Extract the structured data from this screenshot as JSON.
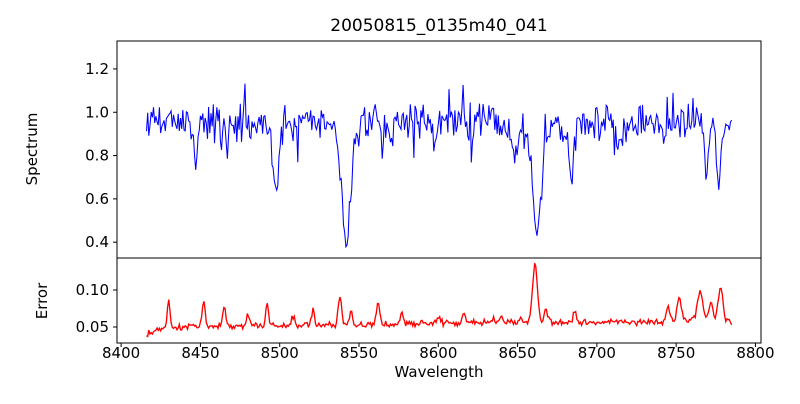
{
  "chart_data": {
    "type": "line",
    "title": "20050815_0135m40_041",
    "xlabel": "Wavelength",
    "background_color": "#ffffff",
    "spine_color": "#000000",
    "xlim": [
      8397.4,
      8803.5
    ],
    "x_data_range": [
      8416,
      8785
    ],
    "n_points": 500,
    "x_ticks": {
      "values": [
        8400,
        8450,
        8500,
        8550,
        8600,
        8650,
        8700,
        8750,
        8800
      ],
      "labels": [
        "8400",
        "8450",
        "8500",
        "8550",
        "8600",
        "8650",
        "8700",
        "8750",
        "8800"
      ]
    },
    "panels": [
      {
        "name": "spectrum",
        "ylabel": "Spectrum",
        "line_color": "#0000ff",
        "ylim": [
          0.327,
          1.329
        ],
        "y_ticks": {
          "values": [
            0.4,
            0.6,
            0.8,
            1.0,
            1.2
          ],
          "labels": [
            "0.4",
            "0.6",
            "0.8",
            "1.0",
            "1.2"
          ]
        },
        "continuum_level": 0.95,
        "peak_max": 1.28,
        "baseline_anchors": [
          [
            8416,
            0.965
          ],
          [
            8440,
            0.945
          ],
          [
            8465,
            0.95
          ],
          [
            8490,
            0.958
          ],
          [
            8515,
            0.962
          ],
          [
            8545,
            0.958
          ],
          [
            8575,
            0.948
          ],
          [
            8605,
            0.945
          ],
          [
            8635,
            0.952
          ],
          [
            8665,
            0.945
          ],
          [
            8695,
            0.948
          ],
          [
            8725,
            0.955
          ],
          [
            8755,
            0.958
          ],
          [
            8785,
            0.948
          ]
        ],
        "absorption_features": [
          [
            8447,
            0.2,
            1.2
          ],
          [
            8467,
            0.1,
            1.0
          ],
          [
            8482,
            0.09,
            1.0
          ],
          [
            8497.5,
            0.32,
            1.8
          ],
          [
            8542,
            0.48,
            2.5
          ],
          [
            8542,
            0.1,
            6.0
          ],
          [
            8570,
            0.07,
            1.1
          ],
          [
            8598,
            0.1,
            1.2
          ],
          [
            8621,
            0.12,
            1.3
          ],
          [
            8648,
            0.17,
            1.6
          ],
          [
            8662,
            0.44,
            2.2
          ],
          [
            8662,
            0.09,
            5.5
          ],
          [
            8684,
            0.26,
            1.4
          ],
          [
            8713,
            0.08,
            1.1
          ],
          [
            8742,
            0.07,
            1.1
          ],
          [
            8769,
            0.22,
            1.3
          ],
          [
            8777,
            0.26,
            1.3
          ]
        ],
        "noise": {
          "seed": 20050815,
          "tri_amp": 0.075,
          "up_prob": 0.038,
          "up_min": 0.05,
          "up_rand": 0.17,
          "down_prob": 0.03,
          "down_min": 0.04,
          "down_rand": 0.1
        }
      },
      {
        "name": "error",
        "ylabel": "Error",
        "line_color": "#ff0000",
        "ylim": [
          0.0284,
          0.1432
        ],
        "y_ticks": {
          "values": [
            0.05,
            0.1
          ],
          "labels": [
            "0.05",
            "0.10"
          ]
        },
        "baseline_anchors": [
          [
            8416,
            0.039
          ],
          [
            8422,
            0.046
          ],
          [
            8435,
            0.05
          ],
          [
            8460,
            0.051
          ],
          [
            8490,
            0.052
          ],
          [
            8520,
            0.052
          ],
          [
            8550,
            0.053
          ],
          [
            8580,
            0.054
          ],
          [
            8615,
            0.056
          ],
          [
            8650,
            0.057
          ],
          [
            8685,
            0.056
          ],
          [
            8715,
            0.056
          ],
          [
            8740,
            0.057
          ],
          [
            8757,
            0.059
          ],
          [
            8770,
            0.06
          ],
          [
            8785,
            0.057
          ]
        ],
        "spike_features": [
          [
            8430,
            0.038,
            0.9
          ],
          [
            8452,
            0.034,
            0.9
          ],
          [
            8465,
            0.028,
            0.9
          ],
          [
            8480,
            0.016,
            0.8
          ],
          [
            8492,
            0.026,
            0.9
          ],
          [
            8509,
            0.014,
            0.8
          ],
          [
            8521,
            0.022,
            0.9
          ],
          [
            8538,
            0.04,
            1.1
          ],
          [
            8545,
            0.02,
            0.9
          ],
          [
            8562,
            0.03,
            1.0
          ],
          [
            8577,
            0.015,
            0.9
          ],
          [
            8600,
            0.009,
            1.0
          ],
          [
            8616,
            0.012,
            1.0
          ],
          [
            8640,
            0.009,
            0.9
          ],
          [
            8661,
            0.08,
            1.5
          ],
          [
            8668,
            0.016,
            1.0
          ],
          [
            8686,
            0.015,
            1.0
          ],
          [
            8745,
            0.017,
            1.2
          ],
          [
            8752,
            0.03,
            1.3
          ],
          [
            8765,
            0.04,
            1.6
          ],
          [
            8772,
            0.024,
            1.2
          ],
          [
            8778,
            0.044,
            1.5
          ]
        ],
        "noise": {
          "seed": 135,
          "tri_amp": 0.0035,
          "up_prob": 0.03,
          "up_min": 0.002,
          "up_rand": 0.006,
          "down_prob": 0,
          "down_min": 0,
          "down_rand": 0
        }
      }
    ]
  }
}
